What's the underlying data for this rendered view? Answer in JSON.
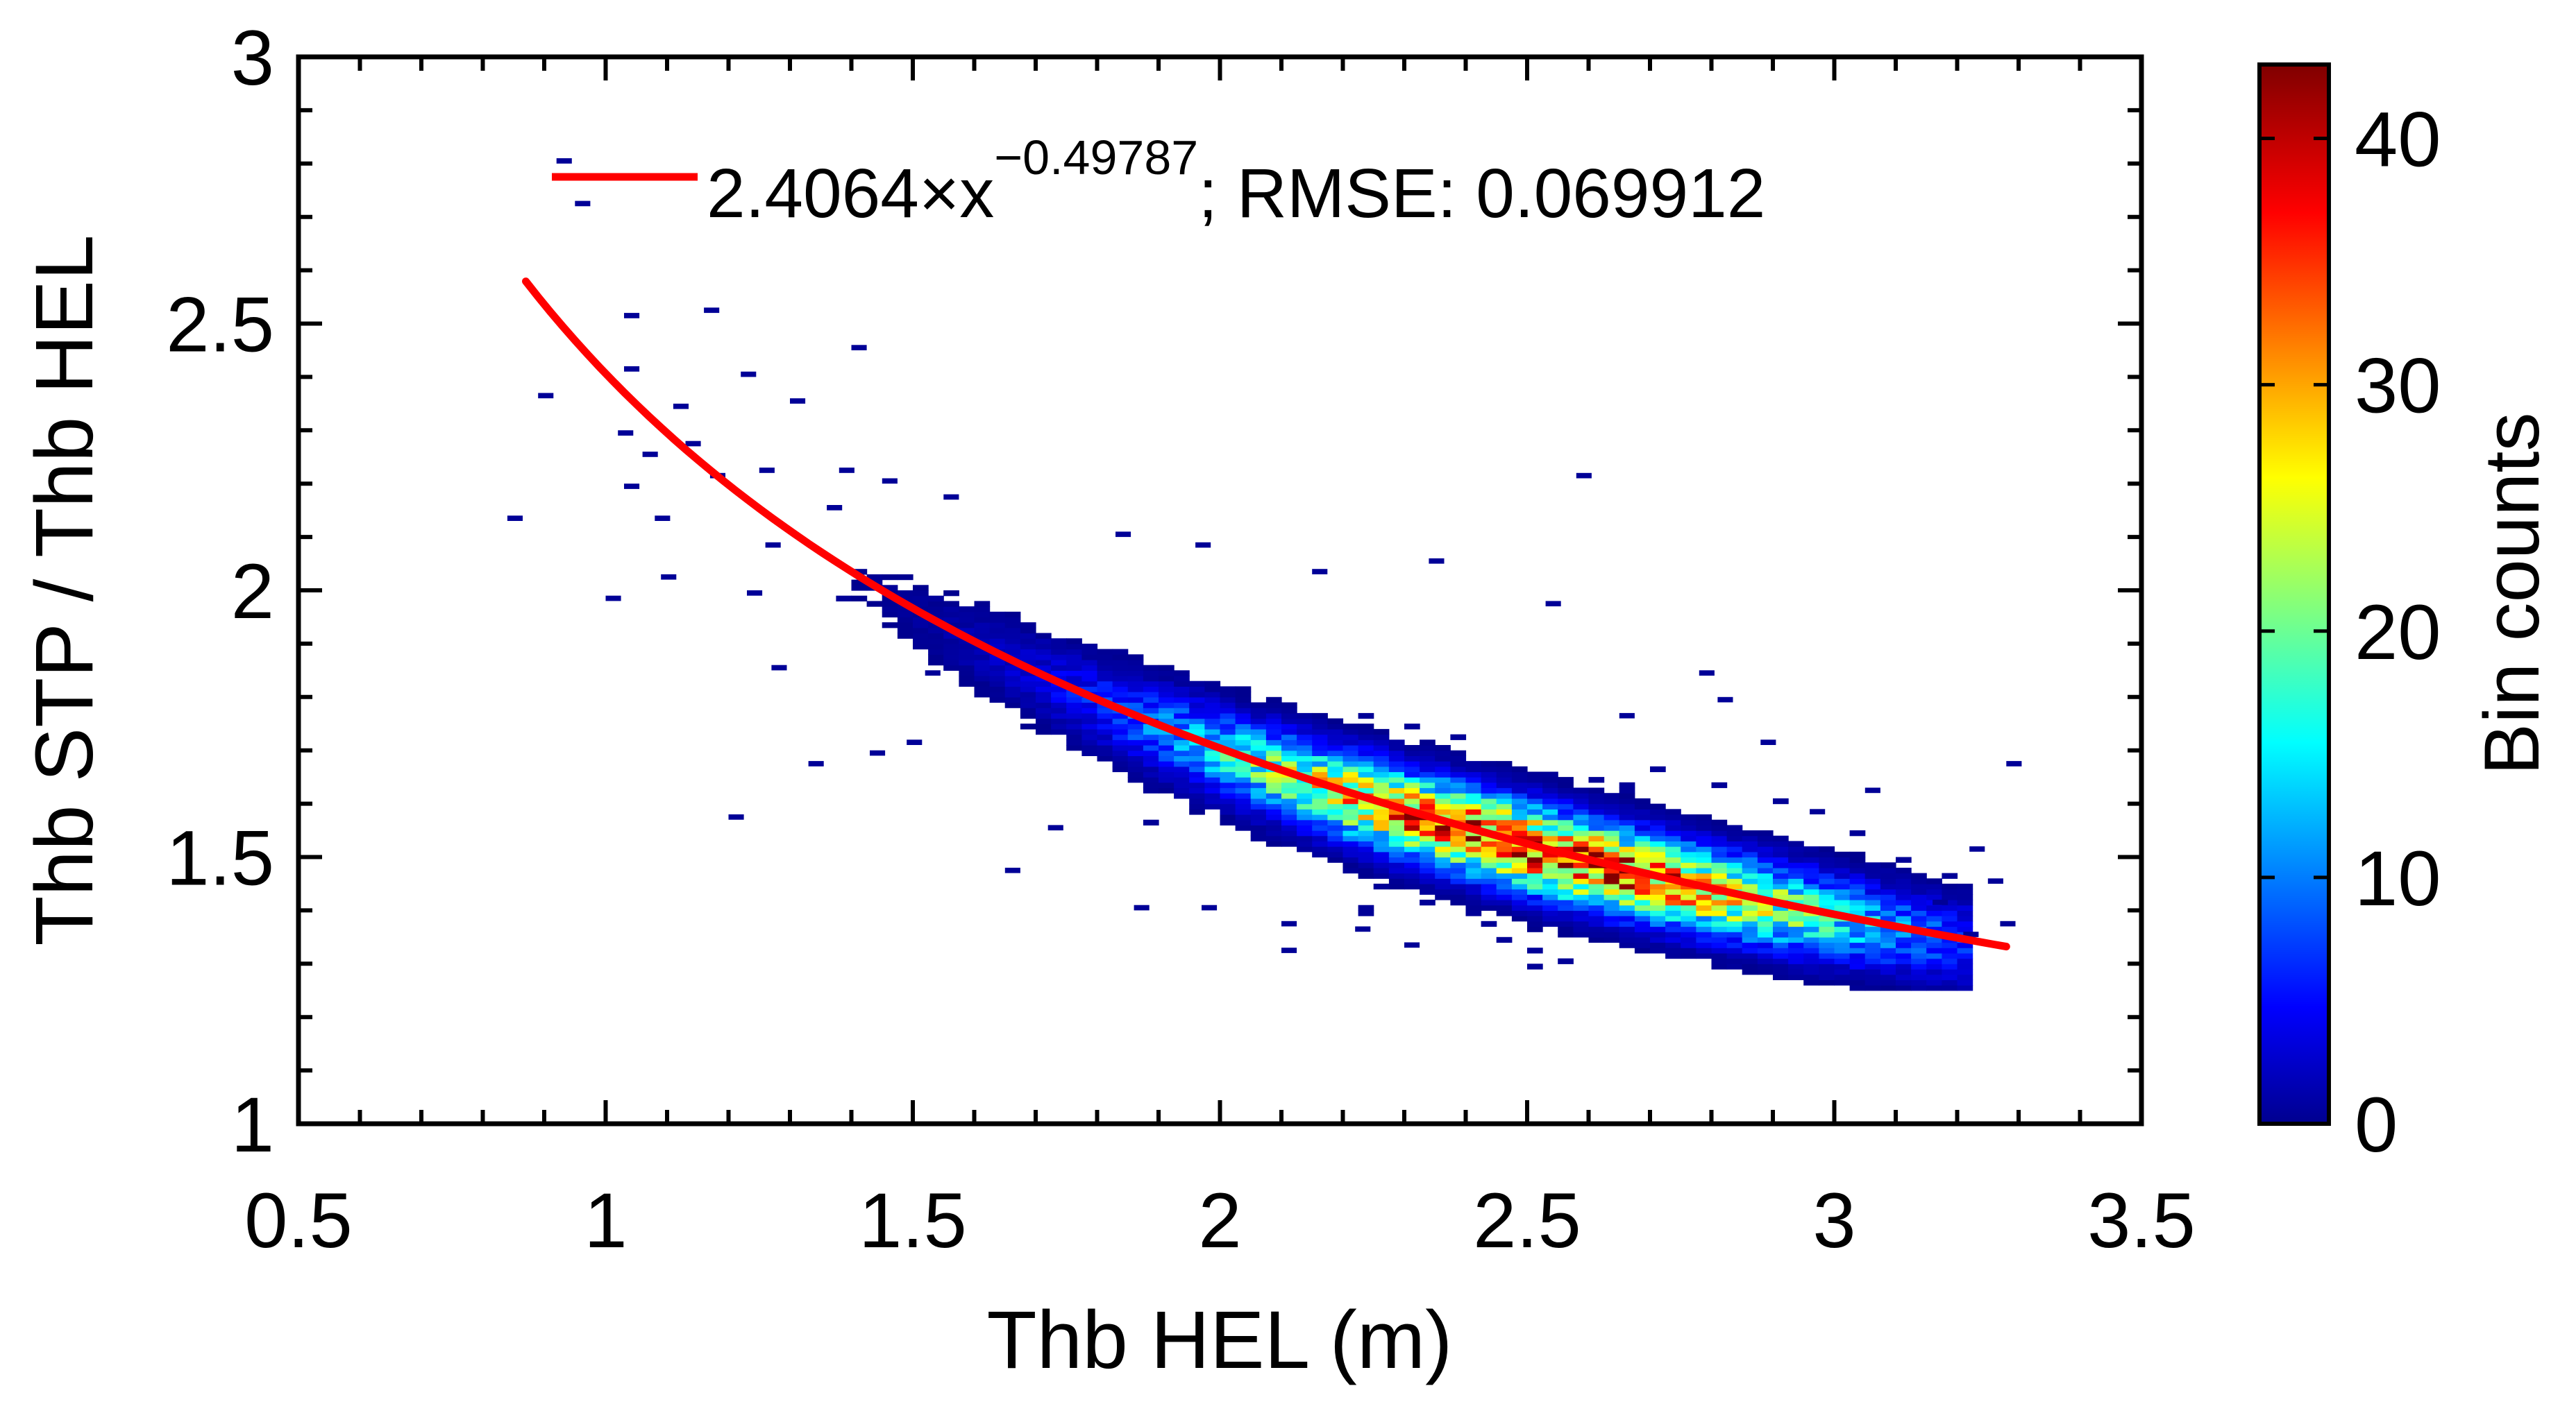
{
  "chart_data": {
    "type": "heatmap",
    "subtype": "2d-histogram-with-fit",
    "title": "",
    "xlabel": "Thb HEL (m)",
    "ylabel": "Thb STP / Thb HEL",
    "xlim": [
      0.5,
      3.5
    ],
    "ylim": [
      1,
      3
    ],
    "x_ticks": [
      0.5,
      1,
      1.5,
      2,
      2.5,
      3,
      3.5
    ],
    "x_tick_labels": [
      "0.5",
      "1",
      "1.5",
      "2",
      "2.5",
      "3",
      "3.5"
    ],
    "y_ticks": [
      1,
      1.5,
      2,
      2.5,
      3
    ],
    "y_tick_labels": [
      "1",
      "1.5",
      "2",
      "2.5",
      "3"
    ],
    "grid": false,
    "bin_width_x": 0.025,
    "bin_width_y": 0.01,
    "colorbar": {
      "label": "Bin counts",
      "range": [
        0,
        43
      ],
      "ticks": [
        0,
        10,
        20,
        30,
        40
      ],
      "tick_labels": [
        "0",
        "10",
        "20",
        "30",
        "40"
      ],
      "colormap": "jet"
    },
    "fit": {
      "name": "power-law fit",
      "coefficient": 2.4064,
      "exponent": -0.49787,
      "x_range": [
        0.87,
        3.28
      ],
      "color": "#ff0000",
      "legend_base": "2.4064×x",
      "legend_exponent": "−0.49787",
      "legend_suffix": "; RMSE: 0.069912",
      "legend_position": "top-right"
    },
    "density_model": {
      "center_x": 2.5,
      "center_y": 1.49,
      "peak_count": 38,
      "spread_along_x": 0.38,
      "spread_across_y": 0.05
    },
    "sparse_bins": [
      {
        "x": 0.92,
        "y": 2.8,
        "count": 1
      },
      {
        "x": 0.93,
        "y": 2.77,
        "count": 1
      },
      {
        "x": 0.95,
        "y": 2.72,
        "count": 1
      },
      {
        "x": 0.84,
        "y": 2.13,
        "count": 1
      },
      {
        "x": 0.89,
        "y": 2.36,
        "count": 1
      },
      {
        "x": 1.03,
        "y": 2.51,
        "count": 1
      },
      {
        "x": 1.16,
        "y": 2.52,
        "count": 1
      },
      {
        "x": 1.4,
        "y": 2.45,
        "count": 1
      },
      {
        "x": 1.22,
        "y": 2.4,
        "count": 1
      },
      {
        "x": 1.03,
        "y": 2.41,
        "count": 1
      },
      {
        "x": 1.3,
        "y": 2.35,
        "count": 1
      },
      {
        "x": 1.02,
        "y": 2.29,
        "count": 1
      },
      {
        "x": 1.06,
        "y": 2.25,
        "count": 1
      },
      {
        "x": 1.13,
        "y": 2.27,
        "count": 1
      },
      {
        "x": 1.03,
        "y": 2.19,
        "count": 1
      },
      {
        "x": 1.17,
        "y": 2.21,
        "count": 1
      },
      {
        "x": 1.25,
        "y": 2.22,
        "count": 1
      },
      {
        "x": 1.08,
        "y": 2.13,
        "count": 1
      },
      {
        "x": 1.26,
        "y": 2.08,
        "count": 1
      },
      {
        "x": 1.09,
        "y": 2.02,
        "count": 1
      },
      {
        "x": 1.0,
        "y": 1.98,
        "count": 1
      },
      {
        "x": 1.23,
        "y": 1.99,
        "count": 1
      },
      {
        "x": 1.36,
        "y": 2.15,
        "count": 1
      },
      {
        "x": 1.45,
        "y": 2.2,
        "count": 1
      },
      {
        "x": 1.55,
        "y": 2.17,
        "count": 1
      },
      {
        "x": 1.2,
        "y": 1.57,
        "count": 1
      },
      {
        "x": 1.33,
        "y": 1.67,
        "count": 1
      },
      {
        "x": 1.43,
        "y": 1.69,
        "count": 1
      },
      {
        "x": 1.49,
        "y": 1.71,
        "count": 1
      },
      {
        "x": 1.27,
        "y": 1.85,
        "count": 1
      },
      {
        "x": 1.52,
        "y": 1.84,
        "count": 1
      },
      {
        "x": 1.65,
        "y": 1.47,
        "count": 1
      },
      {
        "x": 1.72,
        "y": 1.55,
        "count": 1
      },
      {
        "x": 1.86,
        "y": 1.4,
        "count": 1
      },
      {
        "x": 1.97,
        "y": 1.4,
        "count": 1
      },
      {
        "x": 2.1,
        "y": 1.37,
        "count": 1
      },
      {
        "x": 2.1,
        "y": 1.32,
        "count": 1
      },
      {
        "x": 2.22,
        "y": 1.36,
        "count": 1
      },
      {
        "x": 2.3,
        "y": 1.33,
        "count": 1
      },
      {
        "x": 2.58,
        "y": 2.21,
        "count": 1
      },
      {
        "x": 2.53,
        "y": 1.97,
        "count": 1
      },
      {
        "x": 2.34,
        "y": 2.05,
        "count": 1
      },
      {
        "x": 1.83,
        "y": 2.1,
        "count": 1
      },
      {
        "x": 1.96,
        "y": 2.08,
        "count": 1
      },
      {
        "x": 2.15,
        "y": 2.03,
        "count": 1
      },
      {
        "x": 2.78,
        "y": 1.84,
        "count": 1
      },
      {
        "x": 2.81,
        "y": 1.79,
        "count": 1
      },
      {
        "x": 3.05,
        "y": 1.62,
        "count": 1
      },
      {
        "x": 3.28,
        "y": 1.67,
        "count": 1
      },
      {
        "x": 3.22,
        "y": 1.51,
        "count": 1
      },
      {
        "x": 3.25,
        "y": 1.45,
        "count": 1
      },
      {
        "x": 3.27,
        "y": 1.37,
        "count": 1
      },
      {
        "x": 3.21,
        "y": 1.35,
        "count": 1
      },
      {
        "x": 3.16,
        "y": 1.41,
        "count": 1
      },
      {
        "x": 2.96,
        "y": 1.58,
        "count": 1
      },
      {
        "x": 2.65,
        "y": 1.76,
        "count": 1
      },
      {
        "x": 2.88,
        "y": 1.71,
        "count": 1
      },
      {
        "x": 1.38,
        "y": 2.22,
        "count": 1
      },
      {
        "x": 1.11,
        "y": 2.34,
        "count": 1
      }
    ]
  }
}
